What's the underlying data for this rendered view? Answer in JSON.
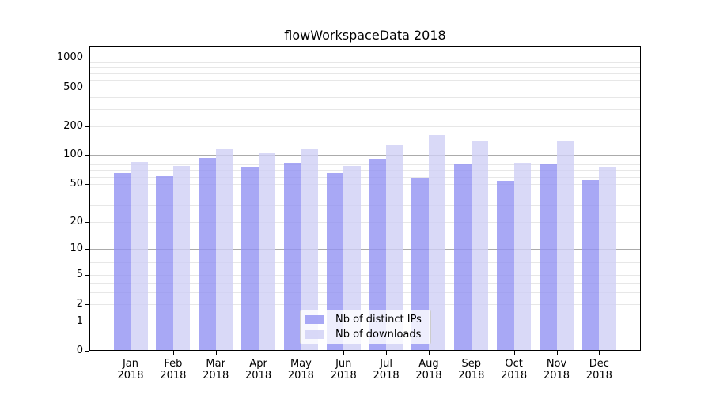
{
  "title": "flowWorkspaceData 2018",
  "chart_data": {
    "type": "bar",
    "title": "flowWorkspaceData 2018",
    "categories": [
      "Jan",
      "Feb",
      "Mar",
      "Apr",
      "May",
      "Jun",
      "Jul",
      "Aug",
      "Sep",
      "Oct",
      "Nov",
      "Dec"
    ],
    "year_label": "2018",
    "series": [
      {
        "name": "Nb of distinct IPs",
        "color": "#9292f3",
        "alpha": 0.8,
        "values": [
          65,
          61,
          94,
          76,
          83,
          65,
          91,
          58,
          80,
          54,
          81,
          55
        ]
      },
      {
        "name": "Nb of downloads",
        "color": "#d0d0f5",
        "alpha": 0.8,
        "values": [
          85,
          77,
          115,
          105,
          118,
          78,
          130,
          160,
          140,
          83,
          138,
          75
        ]
      }
    ],
    "yscale": "log1p",
    "ylim": [
      0,
      1100
    ],
    "yticks": [
      1000,
      500,
      200,
      100,
      50,
      20,
      10,
      5,
      2,
      1,
      0
    ],
    "major_grid_values": [
      1,
      10,
      100,
      1000
    ],
    "minor_grid_values": [
      2,
      3,
      4,
      5,
      6,
      7,
      8,
      9,
      20,
      30,
      40,
      50,
      60,
      70,
      80,
      90,
      200,
      300,
      400,
      500,
      600,
      700,
      800,
      900
    ],
    "grid": "horizontal",
    "legend_position": "lower center",
    "colors": {
      "major_grid": "#ababab",
      "minor_grid": "#e7e7e7",
      "spine": "#000000",
      "text": "#000000"
    }
  }
}
